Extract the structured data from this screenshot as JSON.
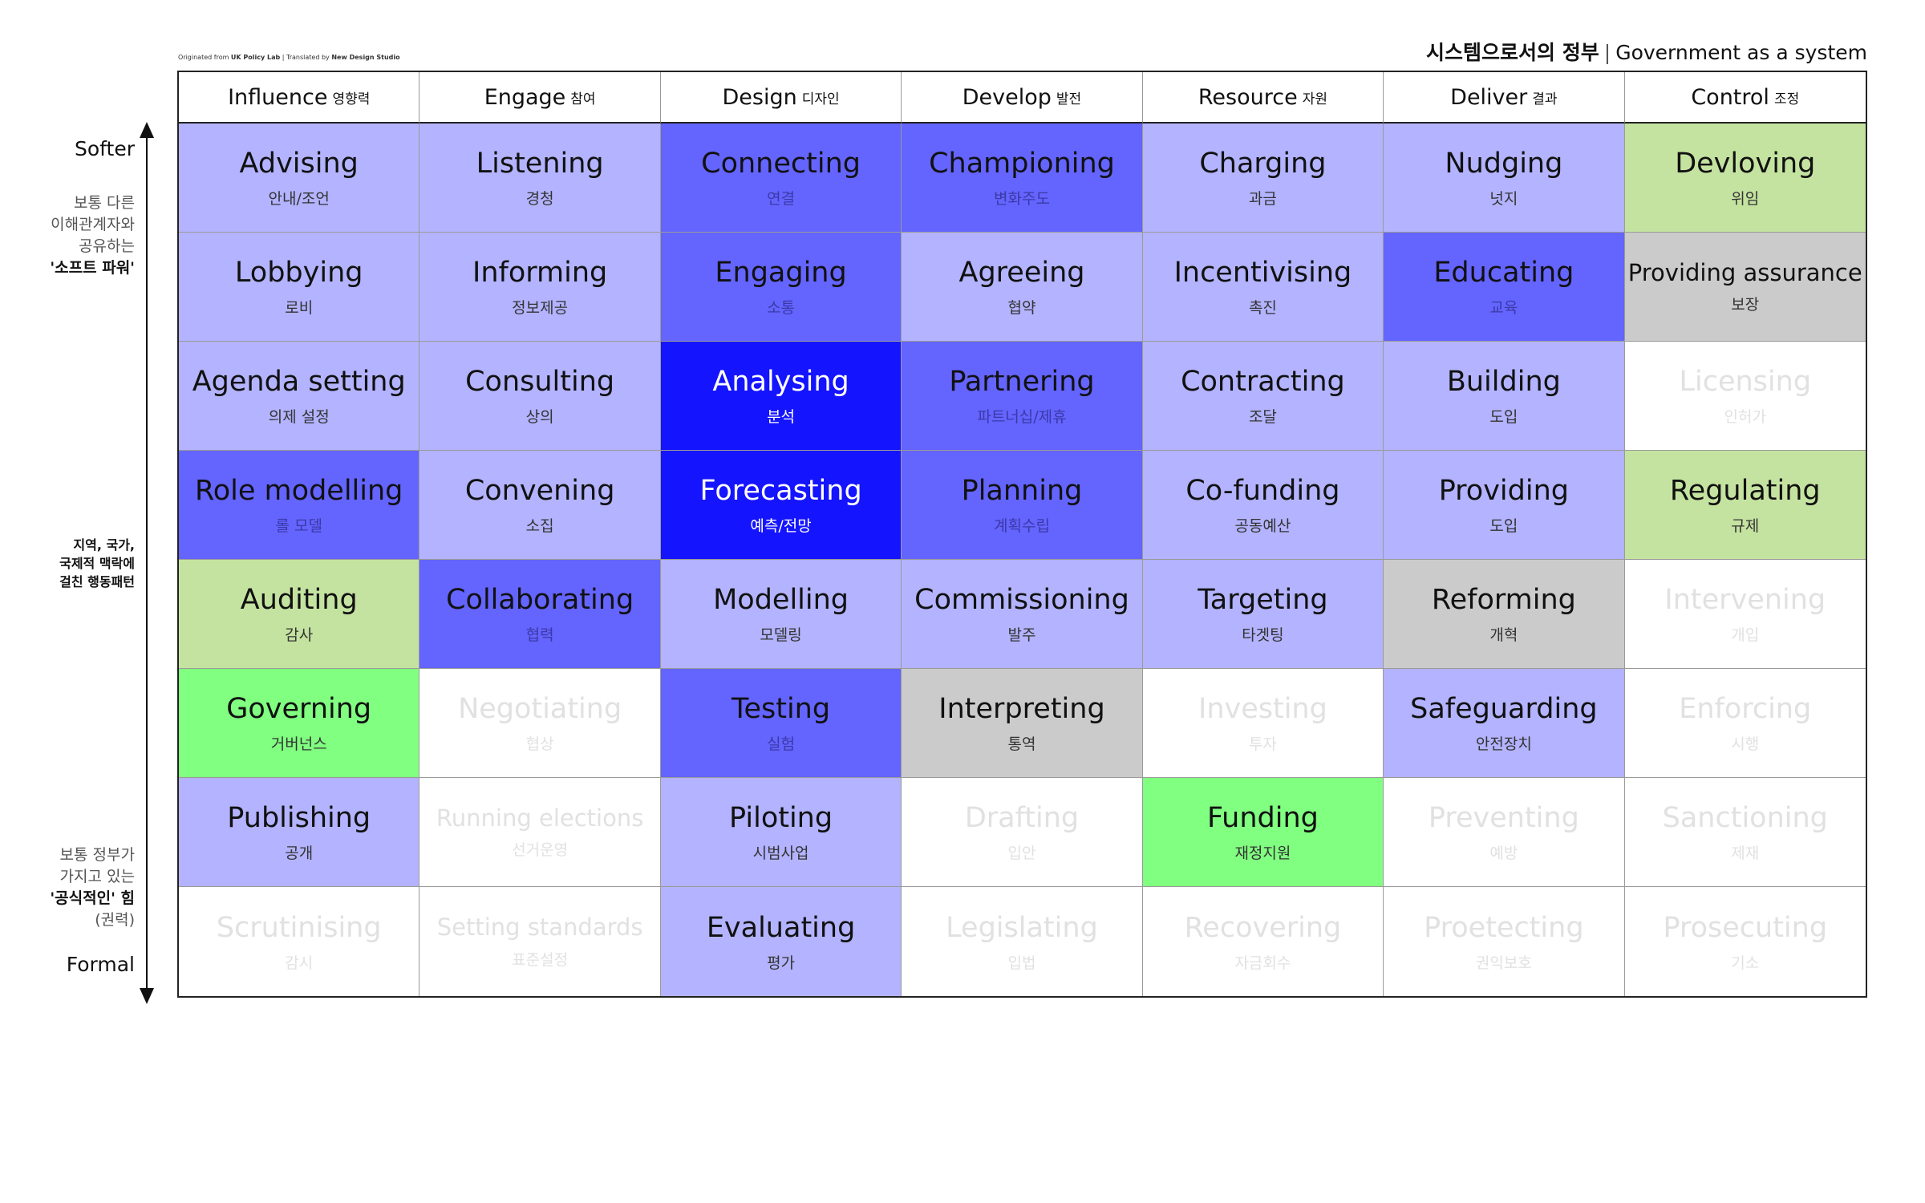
{
  "credit": {
    "prefix": "Originated from ",
    "org": "UK Policy Lab",
    "mid": "  |  Translated by ",
    "translator": "New Design Studio"
  },
  "title": {
    "ko": "시스템으로서의 정부",
    "separator": "|",
    "en": "Government as a system"
  },
  "axis": {
    "top_label": "Softer",
    "bottom_label": "Formal",
    "note_top": [
      "보통 다른",
      "이해관계자와",
      "공유하는"
    ],
    "note_top_strong": "'소프트 파워'",
    "note_middle": [
      "지역, 국가,",
      "국제적 맥락에",
      "걸친 행동패턴"
    ],
    "note_bottom": [
      "보통 정부가",
      "가지고 있는"
    ],
    "note_bottom_strong": "'공식적인' 힘",
    "note_bottom_last": "(권력)"
  },
  "columns": [
    {
      "en": "Influence",
      "ko": "영향력"
    },
    {
      "en": "Engage",
      "ko": "참여"
    },
    {
      "en": "Design",
      "ko": "디자인"
    },
    {
      "en": "Develop",
      "ko": "발전"
    },
    {
      "en": "Resource",
      "ko": "자원"
    },
    {
      "en": "Deliver",
      "ko": "결과"
    },
    {
      "en": "Control",
      "ko": "조정"
    }
  ],
  "shade_colors": {
    "light": "#b3b3ff",
    "medium": "#6464ff",
    "deep": "#1414ff",
    "sage": "#c5e3a0",
    "lime": "#80ff80",
    "gray": "#cbcbcb",
    "none": "#ffffff"
  },
  "rows": [
    [
      {
        "en": "Advising",
        "ko": "안내/조언",
        "shade": "light"
      },
      {
        "en": "Listening",
        "ko": "경청",
        "shade": "light"
      },
      {
        "en": "Connecting",
        "ko": "연결",
        "shade": "medium"
      },
      {
        "en": "Championing",
        "ko": "변화주도",
        "shade": "medium"
      },
      {
        "en": "Charging",
        "ko": "과금",
        "shade": "light"
      },
      {
        "en": "Nudging",
        "ko": "넛지",
        "shade": "light"
      },
      {
        "en": "Devloving",
        "ko": "위임",
        "shade": "sage"
      }
    ],
    [
      {
        "en": "Lobbying",
        "ko": "로비",
        "shade": "light"
      },
      {
        "en": "Informing",
        "ko": "정보제공",
        "shade": "light"
      },
      {
        "en": "Engaging",
        "ko": "소통",
        "shade": "medium"
      },
      {
        "en": "Agreeing",
        "ko": "협약",
        "shade": "light"
      },
      {
        "en": "Incentivising",
        "ko": "촉진",
        "shade": "light"
      },
      {
        "en": "Educating",
        "ko": "교육",
        "shade": "medium"
      },
      {
        "en": "Providing assurance",
        "ko": "보장",
        "shade": "gray"
      }
    ],
    [
      {
        "en": "Agenda setting",
        "ko": "의제 설정",
        "shade": "light"
      },
      {
        "en": "Consulting",
        "ko": "상의",
        "shade": "light"
      },
      {
        "en": "Analysing",
        "ko": "분석",
        "shade": "deep"
      },
      {
        "en": "Partnering",
        "ko": "파트너십/제휴",
        "shade": "medium"
      },
      {
        "en": "Contracting",
        "ko": "조달",
        "shade": "light"
      },
      {
        "en": "Building",
        "ko": "도입",
        "shade": "light"
      },
      {
        "en": "Licensing",
        "ko": "인허가",
        "shade": "none"
      }
    ],
    [
      {
        "en": "Role modelling",
        "ko": "롤 모델",
        "shade": "medium"
      },
      {
        "en": "Convening",
        "ko": "소집",
        "shade": "light"
      },
      {
        "en": "Forecasting",
        "ko": "예측/전망",
        "shade": "deep"
      },
      {
        "en": "Planning",
        "ko": "계획수립",
        "shade": "medium"
      },
      {
        "en": "Co-funding",
        "ko": "공동예산",
        "shade": "light"
      },
      {
        "en": "Providing",
        "ko": "도입",
        "shade": "light"
      },
      {
        "en": "Regulating",
        "ko": "규제",
        "shade": "sage"
      }
    ],
    [
      {
        "en": "Auditing",
        "ko": "감사",
        "shade": "sage"
      },
      {
        "en": "Collaborating",
        "ko": "협력",
        "shade": "medium"
      },
      {
        "en": "Modelling",
        "ko": "모델링",
        "shade": "light"
      },
      {
        "en": "Commissioning",
        "ko": "발주",
        "shade": "light"
      },
      {
        "en": "Targeting",
        "ko": "타겟팅",
        "shade": "light"
      },
      {
        "en": "Reforming",
        "ko": "개혁",
        "shade": "gray"
      },
      {
        "en": "Intervening",
        "ko": "개입",
        "shade": "none"
      }
    ],
    [
      {
        "en": "Governing",
        "ko": "거버넌스",
        "shade": "lime"
      },
      {
        "en": "Negotiating",
        "ko": "협상",
        "shade": "none"
      },
      {
        "en": "Testing",
        "ko": "실험",
        "shade": "medium"
      },
      {
        "en": "Interpreting",
        "ko": "통역",
        "shade": "gray"
      },
      {
        "en": "Investing",
        "ko": "투자",
        "shade": "none"
      },
      {
        "en": "Safeguarding",
        "ko": "안전장치",
        "shade": "light"
      },
      {
        "en": "Enforcing",
        "ko": "시행",
        "shade": "none"
      }
    ],
    [
      {
        "en": "Publishing",
        "ko": "공개",
        "shade": "light"
      },
      {
        "en": "Running elections",
        "ko": "선거운영",
        "shade": "none"
      },
      {
        "en": "Piloting",
        "ko": "시범사업",
        "shade": "light"
      },
      {
        "en": "Drafting",
        "ko": "입안",
        "shade": "none"
      },
      {
        "en": "Funding",
        "ko": "재정지원",
        "shade": "lime"
      },
      {
        "en": "Preventing",
        "ko": "예방",
        "shade": "none"
      },
      {
        "en": "Sanctioning",
        "ko": "제재",
        "shade": "none"
      }
    ],
    [
      {
        "en": "Scrutinising",
        "ko": "감시",
        "shade": "none"
      },
      {
        "en": "Setting standards",
        "ko": "표준설정",
        "shade": "none"
      },
      {
        "en": "Evaluating",
        "ko": "평가",
        "shade": "light"
      },
      {
        "en": "Legislating",
        "ko": "입법",
        "shade": "none"
      },
      {
        "en": "Recovering",
        "ko": "자금회수",
        "shade": "none"
      },
      {
        "en": "Proetecting",
        "ko": "권익보호",
        "shade": "none"
      },
      {
        "en": "Prosecuting",
        "ko": "기소",
        "shade": "none"
      }
    ]
  ]
}
